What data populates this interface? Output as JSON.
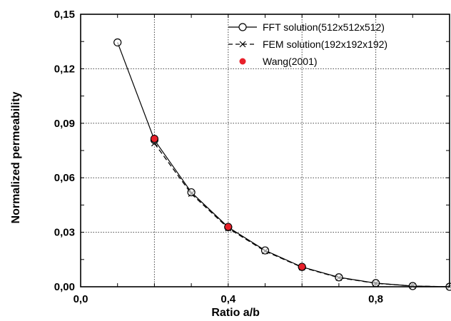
{
  "chart_data": {
    "type": "line",
    "xlabel": "Ratio a/b",
    "ylabel": "Normalized permeability",
    "xlim": [
      0.0,
      1.0
    ],
    "ylim": [
      0.0,
      0.15
    ],
    "x_ticks": [
      "0,0",
      "0,4",
      "0,8"
    ],
    "x_tick_values": [
      0.0,
      0.4,
      0.8
    ],
    "y_ticks": [
      "0,00",
      "0,03",
      "0,06",
      "0,09",
      "0,12",
      "0,15"
    ],
    "y_tick_values": [
      0.0,
      0.03,
      0.06,
      0.09,
      0.12,
      0.15
    ],
    "grid": true,
    "grid_style": "dotted",
    "legend_position": "top-right",
    "series": [
      {
        "name": "FFT solution(512x512x512)",
        "style": "solid-line-open-circle",
        "color": "#000000",
        "x": [
          0.1,
          0.2,
          0.3,
          0.4,
          0.5,
          0.6,
          0.7,
          0.8,
          0.9,
          1.0
        ],
        "y": [
          0.1345,
          0.0808,
          0.052,
          0.0328,
          0.02,
          0.0109,
          0.0052,
          0.002,
          0.0004,
          0.0
        ]
      },
      {
        "name": "FEM solution(192x192x192)",
        "style": "dashed-line-x-marker",
        "color": "#000000",
        "x": [
          0.2,
          0.3,
          0.4,
          0.5,
          0.6,
          0.7,
          0.8,
          0.9,
          1.0
        ],
        "y": [
          0.079,
          0.0512,
          0.0322,
          0.0196,
          0.0107,
          0.005,
          0.0019,
          0.0004,
          0.0
        ]
      },
      {
        "name": "Wang(2001)",
        "style": "filled-red-dot",
        "color": "#e8202a",
        "x": [
          0.2,
          0.4,
          0.6
        ],
        "y": [
          0.0815,
          0.033,
          0.011
        ]
      }
    ]
  }
}
